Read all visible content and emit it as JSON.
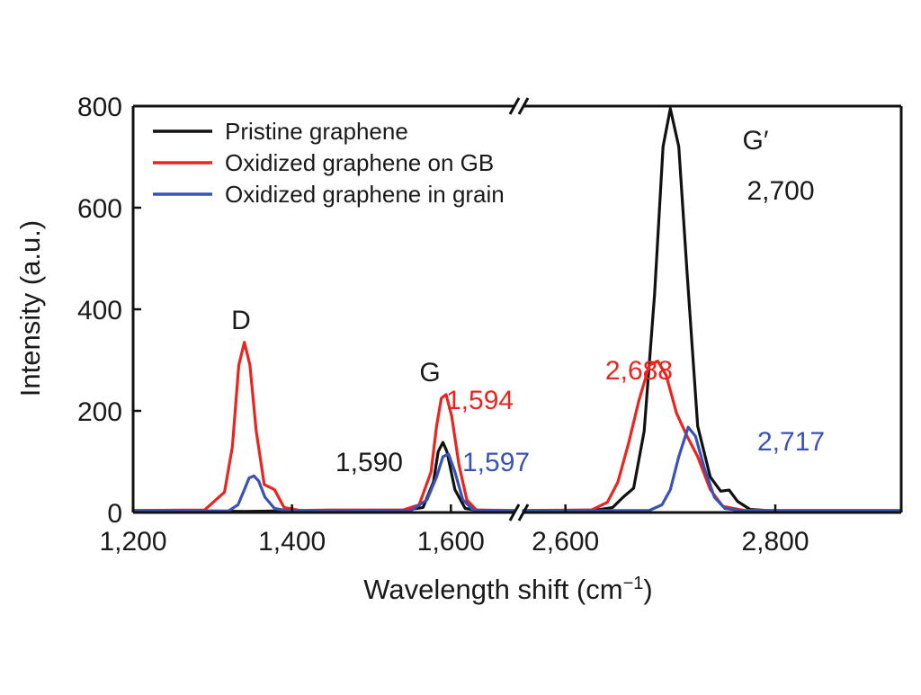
{
  "chart_data": {
    "type": "line",
    "xlabel": "Wavelength shift (cm",
    "xlabel_sup": "−1",
    "xlabel_close": ")",
    "ylabel": "Intensity (a.u.)",
    "ylim": [
      0,
      800
    ],
    "x_break": {
      "left_range": [
        1200,
        1680
      ],
      "right_range": [
        2560,
        2920
      ]
    },
    "legend_position": "top-left",
    "grid": false,
    "y_ticks": [
      "0",
      "200",
      "400",
      "600",
      "800"
    ],
    "y_tick_values": [
      0,
      200,
      400,
      600,
      800
    ],
    "x_ticks": [
      "1,200",
      "1,400",
      "1,600",
      "2,600",
      "2,800"
    ],
    "x_tick_values": [
      1200,
      1400,
      1600,
      2600,
      2800
    ],
    "series": [
      {
        "name": "Pristine graphene",
        "color": "#111111",
        "points": [
          [
            1200,
            3
          ],
          [
            1300,
            3
          ],
          [
            1340,
            2
          ],
          [
            1380,
            3
          ],
          [
            1450,
            3
          ],
          [
            1540,
            4
          ],
          [
            1565,
            10
          ],
          [
            1578,
            60
          ],
          [
            1584,
            120
          ],
          [
            1590,
            138
          ],
          [
            1595,
            120
          ],
          [
            1605,
            45
          ],
          [
            1618,
            8
          ],
          [
            1640,
            3
          ],
          [
            1680,
            3
          ],
          [
            2560,
            3
          ],
          [
            2630,
            5
          ],
          [
            2645,
            10
          ],
          [
            2655,
            30
          ],
          [
            2665,
            48
          ],
          [
            2675,
            160
          ],
          [
            2685,
            430
          ],
          [
            2693,
            720
          ],
          [
            2700,
            795
          ],
          [
            2708,
            720
          ],
          [
            2716,
            470
          ],
          [
            2726,
            170
          ],
          [
            2738,
            70
          ],
          [
            2748,
            42
          ],
          [
            2756,
            44
          ],
          [
            2764,
            22
          ],
          [
            2776,
            6
          ],
          [
            2800,
            3
          ],
          [
            2920,
            3
          ]
        ]
      },
      {
        "name": "Oxidized graphene on GB",
        "color": "#e8261f",
        "points": [
          [
            1200,
            4
          ],
          [
            1290,
            5
          ],
          [
            1315,
            40
          ],
          [
            1325,
            130
          ],
          [
            1333,
            290
          ],
          [
            1340,
            335
          ],
          [
            1347,
            290
          ],
          [
            1355,
            160
          ],
          [
            1365,
            55
          ],
          [
            1378,
            45
          ],
          [
            1390,
            10
          ],
          [
            1410,
            4
          ],
          [
            1450,
            5
          ],
          [
            1540,
            5
          ],
          [
            1560,
            15
          ],
          [
            1575,
            80
          ],
          [
            1582,
            170
          ],
          [
            1588,
            225
          ],
          [
            1594,
            232
          ],
          [
            1601,
            190
          ],
          [
            1610,
            95
          ],
          [
            1620,
            25
          ],
          [
            1632,
            5
          ],
          [
            1680,
            4
          ],
          [
            2560,
            4
          ],
          [
            2625,
            5
          ],
          [
            2640,
            20
          ],
          [
            2650,
            60
          ],
          [
            2660,
            135
          ],
          [
            2670,
            220
          ],
          [
            2680,
            290
          ],
          [
            2688,
            298
          ],
          [
            2696,
            270
          ],
          [
            2706,
            195
          ],
          [
            2716,
            150
          ],
          [
            2726,
            110
          ],
          [
            2738,
            45
          ],
          [
            2750,
            12
          ],
          [
            2770,
            4
          ],
          [
            2920,
            4
          ]
        ]
      },
      {
        "name": "Oxidized graphene in grain",
        "color": "#3a52b4",
        "points": [
          [
            1200,
            3
          ],
          [
            1320,
            3
          ],
          [
            1332,
            15
          ],
          [
            1340,
            45
          ],
          [
            1346,
            68
          ],
          [
            1352,
            72
          ],
          [
            1358,
            62
          ],
          [
            1366,
            30
          ],
          [
            1378,
            8
          ],
          [
            1395,
            3
          ],
          [
            1450,
            3
          ],
          [
            1550,
            4
          ],
          [
            1570,
            25
          ],
          [
            1582,
            70
          ],
          [
            1590,
            110
          ],
          [
            1597,
            115
          ],
          [
            1605,
            80
          ],
          [
            1615,
            25
          ],
          [
            1628,
            5
          ],
          [
            1680,
            3
          ],
          [
            2560,
            3
          ],
          [
            2680,
            4
          ],
          [
            2692,
            15
          ],
          [
            2700,
            45
          ],
          [
            2708,
            110
          ],
          [
            2717,
            168
          ],
          [
            2724,
            150
          ],
          [
            2732,
            90
          ],
          [
            2742,
            30
          ],
          [
            2752,
            8
          ],
          [
            2770,
            3
          ],
          [
            2920,
            3
          ]
        ]
      }
    ],
    "annotations": [
      {
        "text": "D",
        "color": "#1a1a1a"
      },
      {
        "text": "G",
        "color": "#1a1a1a"
      },
      {
        "text": "G′",
        "color": "#1a1a1a"
      },
      {
        "text": "2,700",
        "color": "#1a1a1a"
      },
      {
        "text": "1,594",
        "color": "#e8261f"
      },
      {
        "text": "1,590",
        "color": "#1a1a1a"
      },
      {
        "text": "1,597",
        "color": "#3a52b4"
      },
      {
        "text": "2,688",
        "color": "#e8261f"
      },
      {
        "text": "2,717",
        "color": "#3a52b4"
      }
    ]
  }
}
